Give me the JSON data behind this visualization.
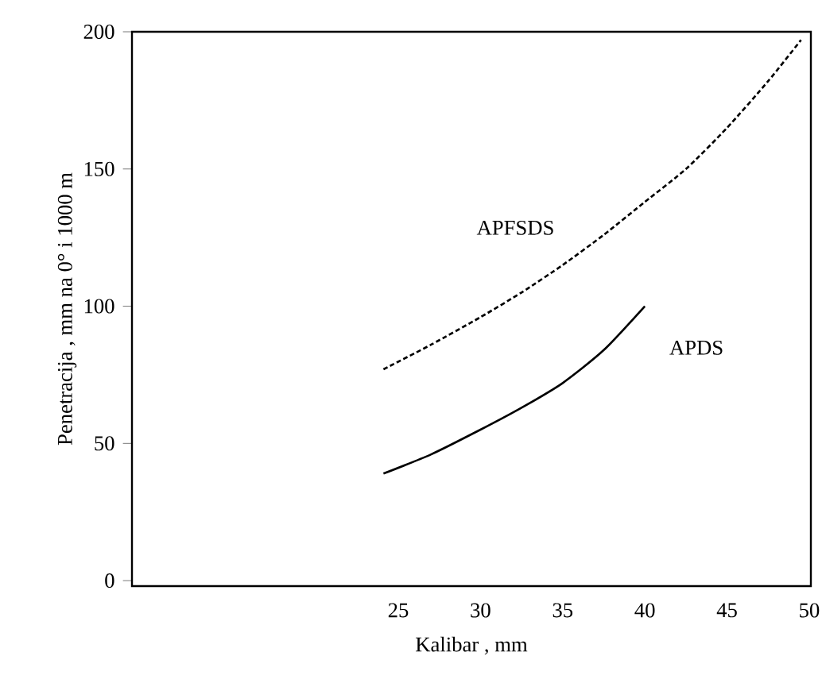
{
  "chart_data": {
    "type": "line",
    "xlabel": "Kalibar , mm",
    "ylabel": "Penetracija , mm na 0° i 1000 m",
    "xlim": [
      8.8,
      50.1
    ],
    "ylim": [
      -2,
      200
    ],
    "xticks": [
      25,
      30,
      35,
      40,
      45,
      50
    ],
    "yticks": [
      0,
      50,
      100,
      150,
      200
    ],
    "grid": false,
    "marker": "none",
    "series": [
      {
        "name": "APFSDS",
        "color": "#000000",
        "line_style": "dashed",
        "x": [
          24.1,
          27,
          30,
          32.5,
          35,
          37.5,
          40,
          42.5,
          45,
          47.5,
          49.5
        ],
        "values": [
          77,
          86,
          96,
          105,
          115,
          126,
          138,
          150,
          165,
          182,
          197
        ]
      },
      {
        "name": "APDS",
        "color": "#000000",
        "line_style": "solid",
        "x": [
          24.1,
          27,
          30,
          32.5,
          35,
          37.5,
          40
        ],
        "values": [
          39,
          46,
          55,
          63,
          72,
          84,
          100
        ]
      }
    ]
  }
}
